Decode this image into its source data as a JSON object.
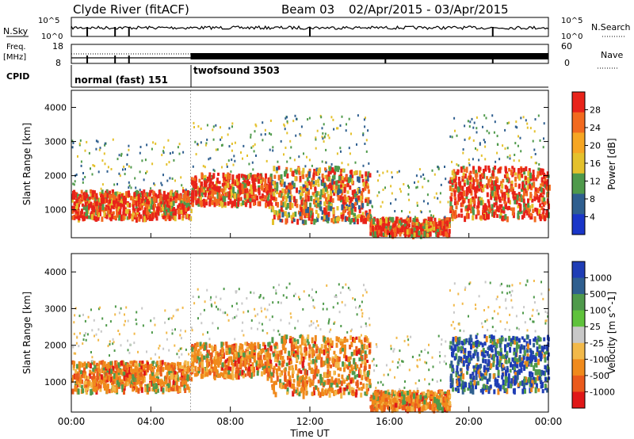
{
  "header": {
    "title": "Clyde River (fitACF)",
    "beam": "Beam 03",
    "date_range": "02/Apr/2015 - 03/Apr/2015"
  },
  "top_panels": {
    "nsky_label": "N.Sky",
    "nsky_ticks": [
      "10^5",
      "10^0"
    ],
    "nsearch_label": "N.Search",
    "nsearch_ticks": [
      "10^5",
      "10^0"
    ],
    "freq_label_1": "Freq.",
    "freq_label_2": "[MHz]",
    "freq_ticks": [
      "18",
      "8"
    ],
    "nave_label": "Nave",
    "nave_ticks": [
      "60",
      "0"
    ],
    "cpid_label": "CPID",
    "cpid_segments": [
      {
        "name": "normal (fast) 151",
        "start_hour": 0,
        "end_hour": 6
      },
      {
        "name": "twofsound 3503",
        "start_hour": 6,
        "end_hour": 24
      }
    ],
    "nsky_dips_hours": [
      0.8,
      2.2,
      2.9,
      12.0,
      21.2
    ],
    "freq_dips_hours": [
      0.8,
      2.2,
      2.9,
      15.8,
      21.2
    ]
  },
  "chart_data": [
    {
      "type": "heatmap",
      "name": "power",
      "xlabel": "",
      "ylabel": "Slant Range [km]",
      "xlim": [
        0,
        24
      ],
      "ylim": [
        180,
        4500
      ],
      "yticks": [
        1000,
        2000,
        3000,
        4000
      ],
      "colorbar": {
        "label": "Power [dB]",
        "ticks": [
          "28",
          "24",
          "20",
          "16",
          "12",
          "8",
          "4"
        ],
        "colors": [
          "#e8231a",
          "#f26a1f",
          "#f6a623",
          "#e4c12c",
          "#4f9a4b",
          "#2f5f8f",
          "#1a36c8"
        ]
      },
      "bands": [
        {
          "t0": 0,
          "t1": 6,
          "r0": 800,
          "r1": 1600,
          "level": "strong"
        },
        {
          "t0": 6,
          "t1": 10,
          "r0": 1200,
          "r1": 2100,
          "level": "strong"
        },
        {
          "t0": 10,
          "t1": 15,
          "r0": 700,
          "r1": 2300,
          "level": "medium"
        },
        {
          "t0": 15,
          "t1": 19,
          "r0": 300,
          "r1": 800,
          "level": "strong"
        },
        {
          "t0": 19,
          "t1": 24,
          "r0": 800,
          "r1": 2300,
          "level": "strong"
        }
      ]
    },
    {
      "type": "heatmap",
      "name": "velocity",
      "xlabel": "Time UT",
      "ylabel": "Slant Range [km]",
      "xlim": [
        0,
        24
      ],
      "ylim": [
        180,
        4500
      ],
      "yticks": [
        1000,
        2000,
        3000,
        4000
      ],
      "xticks": [
        "00:00",
        "04:00",
        "08:00",
        "12:00",
        "16:00",
        "20:00",
        "00:00"
      ],
      "colorbar": {
        "label": "Velocity [m s^-1]",
        "ticks": [
          "1000",
          "500",
          "100",
          "25",
          "-25",
          "-100",
          "-500",
          "-1000"
        ],
        "colors": [
          "#1f3db5",
          "#2f5f8f",
          "#4f9a4b",
          "#5fc23c",
          "#c8c8c8",
          "#f2b94a",
          "#f08a1c",
          "#ea5a1c",
          "#e01818"
        ]
      },
      "bands": [
        {
          "t0": 0,
          "t1": 6,
          "r0": 800,
          "r1": 1600,
          "level": "neg"
        },
        {
          "t0": 6,
          "t1": 10,
          "r0": 1200,
          "r1": 2100,
          "level": "neg"
        },
        {
          "t0": 10,
          "t1": 15,
          "r0": 700,
          "r1": 2300,
          "level": "neg"
        },
        {
          "t0": 15,
          "t1": 19,
          "r0": 300,
          "r1": 800,
          "level": "neg"
        },
        {
          "t0": 19,
          "t1": 24,
          "r0": 800,
          "r1": 2300,
          "level": "pos"
        }
      ]
    }
  ]
}
